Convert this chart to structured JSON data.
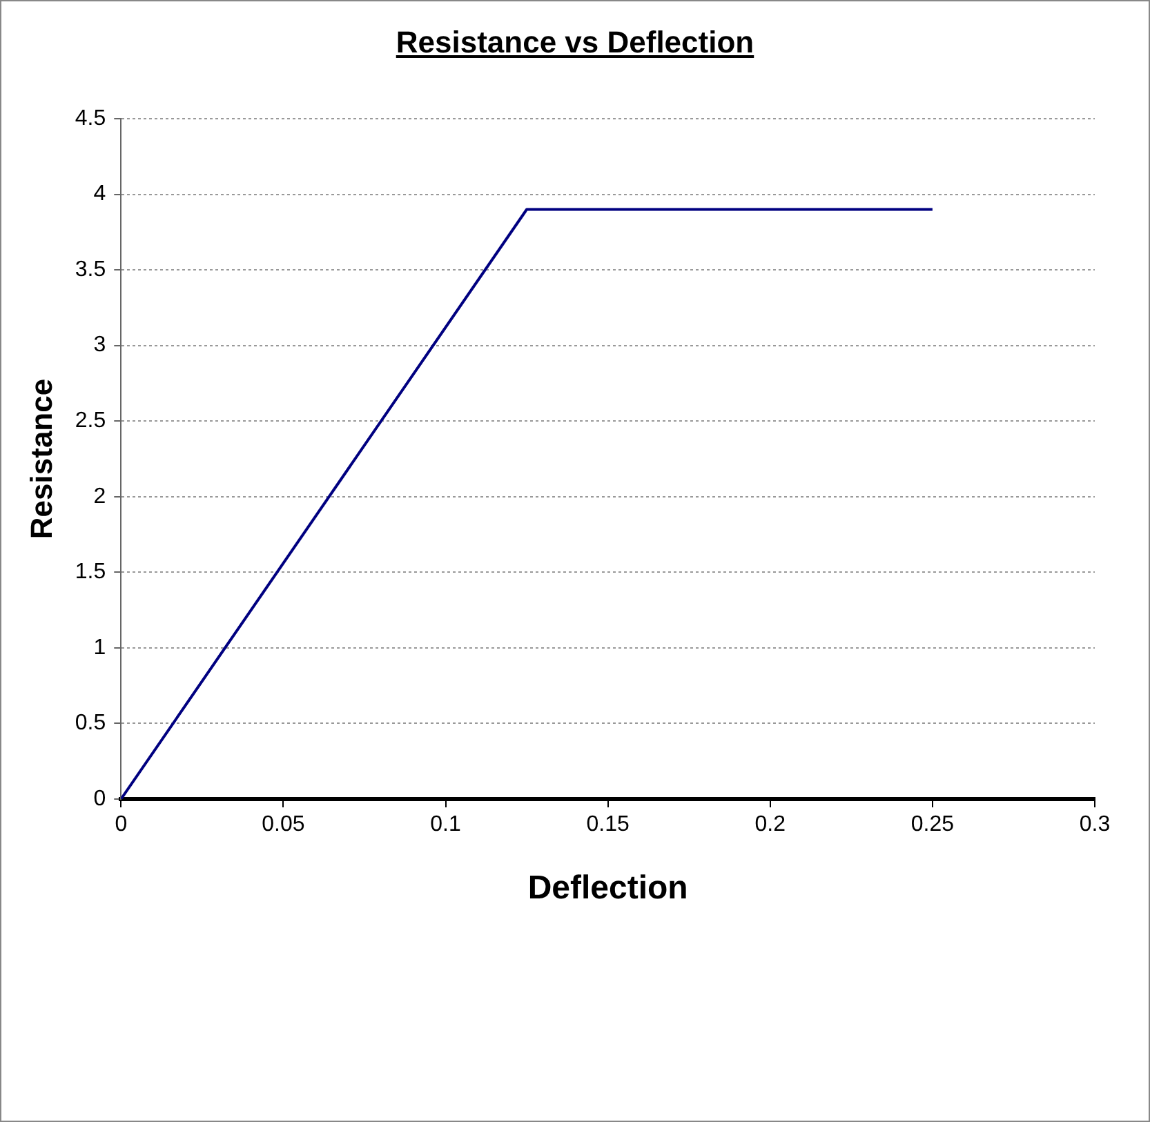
{
  "chart_data": {
    "type": "line",
    "title": "Resistance vs Deflection",
    "xlabel": "Deflection",
    "ylabel": "Resistance",
    "x": [
      0,
      0.125,
      0.25
    ],
    "series": [
      {
        "color": "#000080",
        "values": [
          0,
          3.9,
          3.9
        ]
      }
    ],
    "xlim": [
      0,
      0.3
    ],
    "xticks": [
      0,
      0.05,
      0.1,
      0.15,
      0.2,
      0.25,
      0.3
    ],
    "ylim": [
      0,
      4.5
    ],
    "yticks": [
      0,
      0.5,
      1,
      1.5,
      2,
      2.5,
      3,
      3.5,
      4,
      4.5
    ],
    "grid": "y",
    "legend": false,
    "marker": "none",
    "line_style": "solid"
  }
}
